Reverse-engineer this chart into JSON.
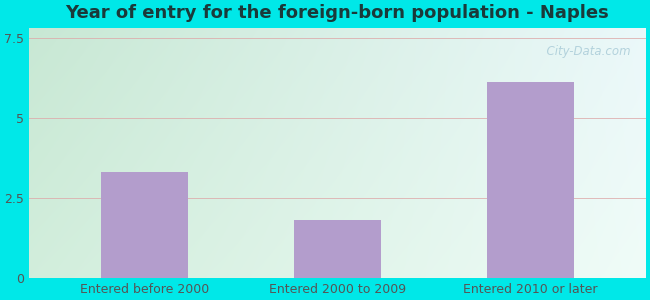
{
  "categories": [
    "Entered before 2000",
    "Entered 2000 to 2009",
    "Entered 2010 or later"
  ],
  "values": [
    3.3,
    1.8,
    6.1
  ],
  "bar_color": "#b39dcc",
  "title": "Year of entry for the foreign-born population - Naples",
  "title_fontsize": 13,
  "ylim": [
    0,
    7.8
  ],
  "yticks": [
    0,
    2.5,
    5,
    7.5
  ],
  "ytick_labels": [
    "0",
    "2.5",
    "5",
    "7.5"
  ],
  "background_outer": "#00e8e8",
  "bg_topleft": "#c8e8d0",
  "bg_topright": "#e8f4f0",
  "bg_bottomleft": "#d8eedd",
  "bg_bottomright": "#f0faf4",
  "grid_color": "#ddaaaa",
  "label_color": "#555555",
  "title_color": "#1a3a3a",
  "watermark": "  City-Data.com",
  "watermark_color": "#aaccd8",
  "bar_width": 0.45
}
